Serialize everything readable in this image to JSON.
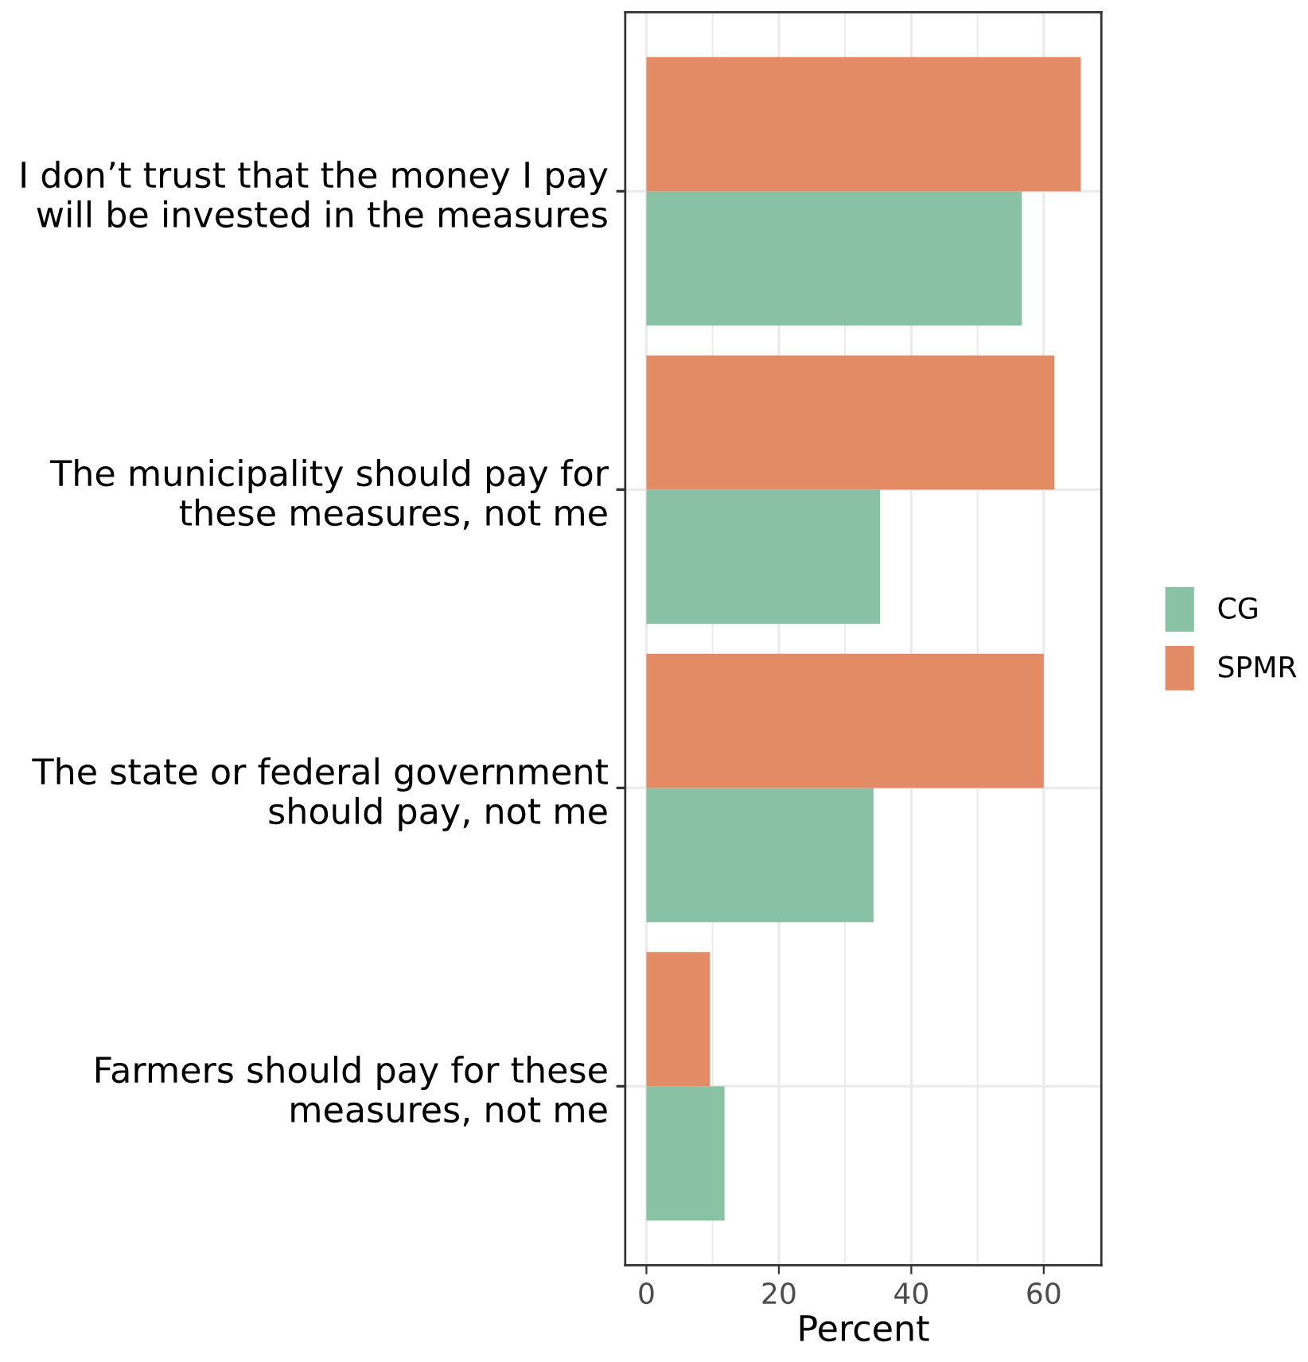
{
  "chart_data": {
    "type": "bar",
    "orientation": "horizontal",
    "xlabel": "Percent",
    "categories": [
      "I don’t trust that the money I pay\nwill be invested in the measures",
      "The municipality should pay for\nthese measures, not me",
      "The state or federal government\nshould pay, not me",
      "Farmers should pay for these\nmeasures, not me"
    ],
    "series": [
      {
        "name": "CG",
        "color": "#88c1a4",
        "values": [
          56.7,
          35.3,
          34.3,
          11.8
        ]
      },
      {
        "name": "SPMR",
        "color": "#e28b65",
        "values": [
          65.6,
          61.6,
          60.0,
          9.6
        ]
      }
    ],
    "xlim": [
      -3.2,
      68.7
    ],
    "xticks": [
      0,
      20,
      40,
      60
    ],
    "grid": true,
    "legend": "right"
  }
}
